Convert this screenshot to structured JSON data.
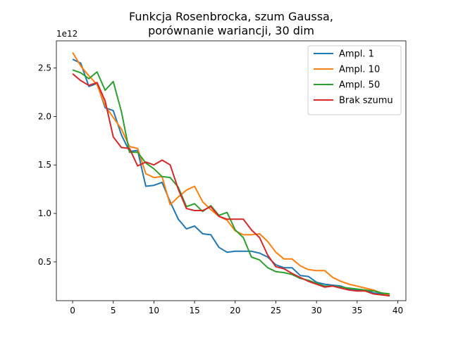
{
  "chart_data": {
    "type": "line",
    "title_lines": [
      "Funkcja Rosenbrocka, szum Gaussa,",
      "porównanie wariancji, 30 dim"
    ],
    "xlabel": "",
    "ylabel": "",
    "offset_text": "1e12",
    "xlim": [
      -2,
      41
    ],
    "ylim": [
      0.1,
      2.78
    ],
    "x_ticks": [
      0,
      5,
      10,
      15,
      20,
      25,
      30,
      35,
      40
    ],
    "y_ticks": [
      0.5,
      1.0,
      1.5,
      2.0,
      2.5
    ],
    "y_tick_labels": [
      "0.5",
      "1.0",
      "1.5",
      "2.0",
      "2.5"
    ],
    "grid": false,
    "legend_position": "upper right",
    "x": [
      0,
      1,
      2,
      3,
      4,
      5,
      6,
      7,
      8,
      9,
      10,
      11,
      12,
      13,
      14,
      15,
      16,
      17,
      18,
      19,
      20,
      21,
      22,
      23,
      24,
      25,
      26,
      27,
      28,
      29,
      30,
      31,
      32,
      33,
      34,
      35,
      36,
      37,
      38,
      39
    ],
    "series": [
      {
        "name": "Ampl. 1",
        "color": "#1f77b4",
        "values": [
          2.59,
          2.55,
          2.31,
          2.34,
          2.09,
          2.06,
          1.81,
          1.64,
          1.65,
          1.28,
          1.29,
          1.32,
          1.12,
          0.94,
          0.84,
          0.87,
          0.79,
          0.78,
          0.65,
          0.6,
          0.61,
          0.61,
          0.61,
          0.59,
          0.55,
          0.47,
          0.44,
          0.44,
          0.36,
          0.35,
          0.29,
          0.27,
          0.26,
          0.25,
          0.22,
          0.21,
          0.21,
          0.18,
          0.17,
          0.15
        ]
      },
      {
        "name": "Ampl. 10",
        "color": "#ff7f0e",
        "values": [
          2.66,
          2.52,
          2.42,
          2.33,
          2.11,
          1.99,
          1.87,
          1.69,
          1.67,
          1.41,
          1.37,
          1.38,
          1.09,
          1.17,
          1.24,
          1.28,
          1.12,
          1.04,
          0.97,
          0.93,
          0.82,
          0.78,
          0.78,
          0.79,
          0.71,
          0.6,
          0.53,
          0.53,
          0.46,
          0.42,
          0.41,
          0.41,
          0.34,
          0.3,
          0.27,
          0.25,
          0.23,
          0.21,
          0.18,
          0.16
        ]
      },
      {
        "name": "Ampl. 50",
        "color": "#2ca02c",
        "values": [
          2.48,
          2.45,
          2.39,
          2.46,
          2.27,
          2.36,
          2.05,
          1.63,
          1.63,
          1.52,
          1.46,
          1.38,
          1.37,
          1.27,
          1.07,
          1.1,
          1.02,
          1.08,
          0.98,
          1.01,
          0.83,
          0.75,
          0.55,
          0.52,
          0.44,
          0.4,
          0.39,
          0.37,
          0.33,
          0.31,
          0.28,
          0.25,
          0.25,
          0.24,
          0.23,
          0.22,
          0.21,
          0.2,
          0.18,
          0.17
        ]
      },
      {
        "name": "Brak szumu",
        "color": "#d62728",
        "values": [
          2.44,
          2.37,
          2.32,
          2.35,
          2.16,
          1.79,
          1.68,
          1.67,
          1.49,
          1.53,
          1.5,
          1.55,
          1.5,
          1.25,
          1.05,
          1.03,
          1.03,
          1.07,
          0.97,
          0.94,
          0.94,
          0.94,
          0.83,
          0.75,
          0.57,
          0.45,
          0.43,
          0.38,
          0.34,
          0.3,
          0.27,
          0.24,
          0.25,
          0.23,
          0.21,
          0.2,
          0.2,
          0.17,
          0.16,
          0.15
        ]
      }
    ]
  }
}
